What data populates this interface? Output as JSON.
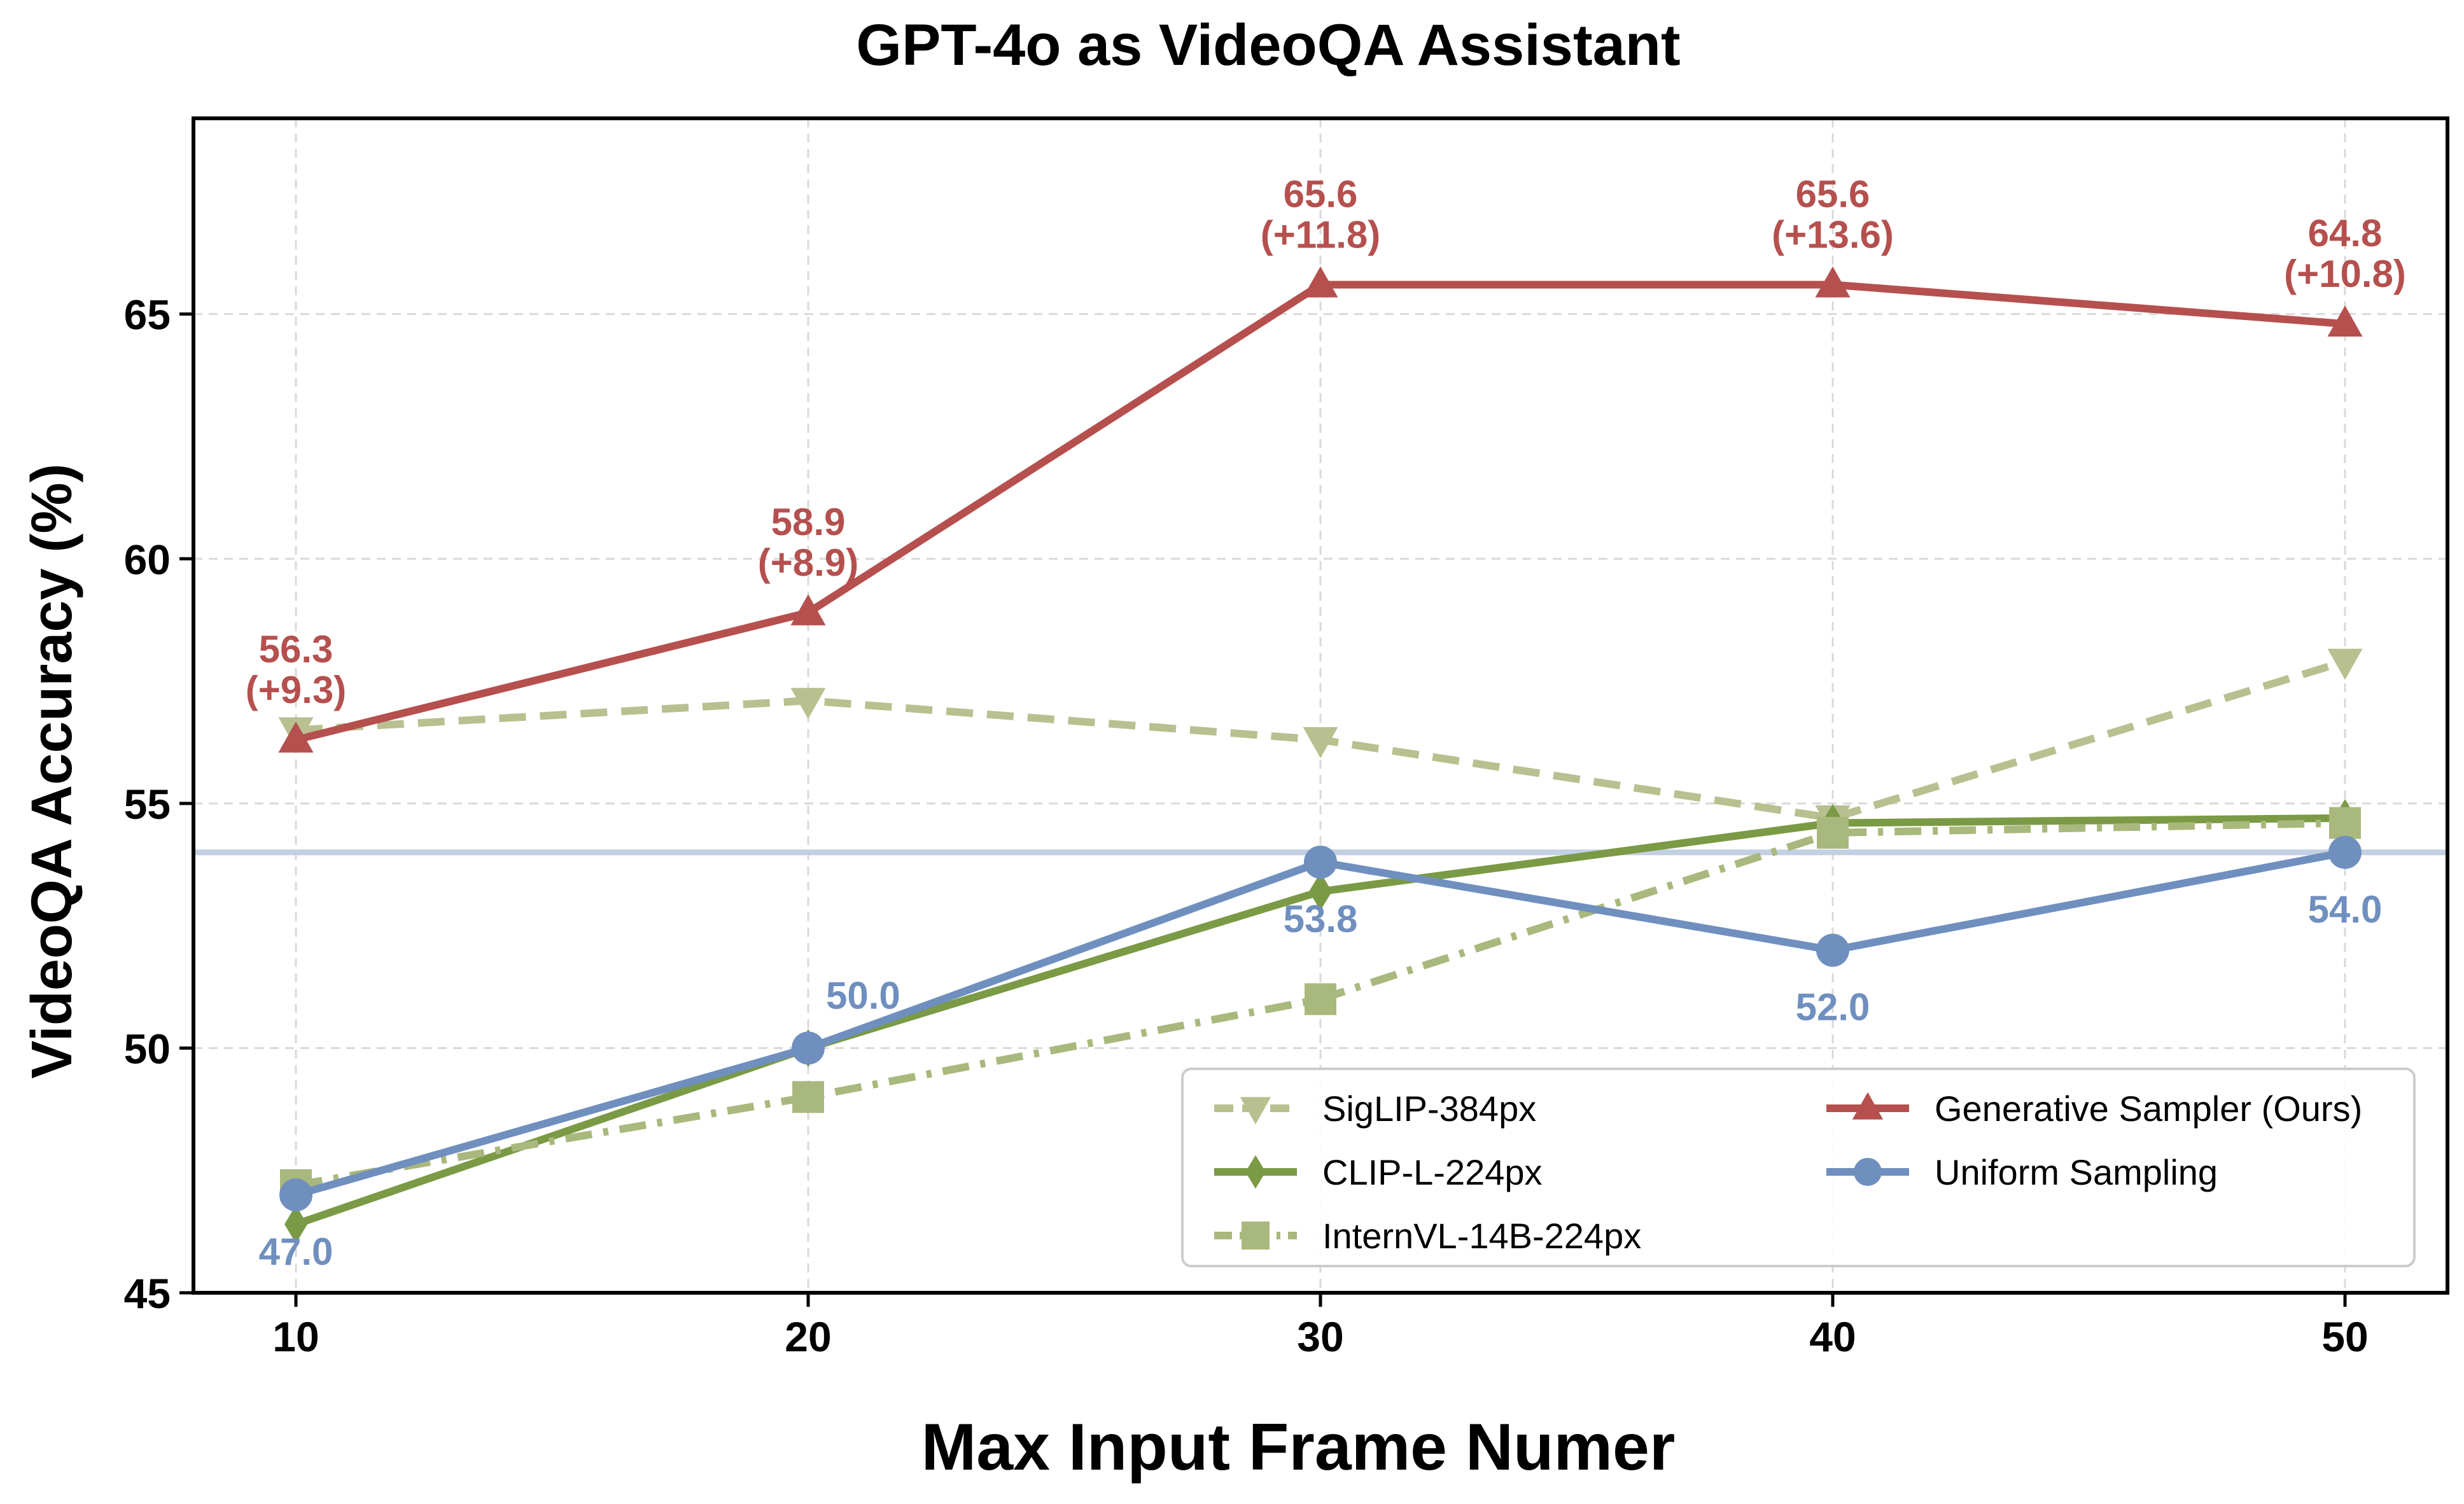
{
  "chart_data": {
    "type": "line",
    "title": "GPT-4o as VideoQA Assistant",
    "xlabel": "Max Input Frame Numer",
    "ylabel": "VideoQA Accuracy (%)",
    "x": [
      10,
      20,
      30,
      40,
      50
    ],
    "xlim": [
      8,
      52
    ],
    "ylim": [
      45,
      69
    ],
    "xticks": [
      "10",
      "20",
      "30",
      "40",
      "50"
    ],
    "yticks": [
      "45",
      "50",
      "55",
      "60",
      "65"
    ],
    "grid": true,
    "legend_position": "bottom-right",
    "reference_line": {
      "y": 54.0,
      "color": "#c3d0e3"
    },
    "series": [
      {
        "name": "SigLIP-384px",
        "values": [
          56.5,
          57.1,
          56.3,
          54.7,
          57.9
        ],
        "color": "#b8c090",
        "linestyle": "dashed",
        "marker": "triangle-down"
      },
      {
        "name": "CLIP-L-224px",
        "values": [
          46.4,
          50.0,
          53.2,
          54.6,
          54.7
        ],
        "color": "#7a9a45",
        "linestyle": "solid",
        "marker": "diamond"
      },
      {
        "name": "InternVL-14B-224px",
        "values": [
          47.2,
          49.0,
          51.0,
          54.4,
          54.6
        ],
        "color": "#a9b87c",
        "linestyle": "dashdot",
        "marker": "square"
      },
      {
        "name": "Generative Sampler (Ours)",
        "values": [
          56.3,
          58.9,
          65.6,
          65.6,
          64.8
        ],
        "color": "#b5504e",
        "linestyle": "solid",
        "marker": "triangle-up"
      },
      {
        "name": "Uniform Sampling",
        "values": [
          47.0,
          50.0,
          53.8,
          52.0,
          54.0
        ],
        "color": "#6f8fbf",
        "linestyle": "solid",
        "marker": "circle"
      }
    ],
    "annotations_red": [
      {
        "value": "56.3",
        "delta": "(+9.3)"
      },
      {
        "value": "58.9",
        "delta": "(+8.9)"
      },
      {
        "value": "65.6",
        "delta": "(+11.8)"
      },
      {
        "value": "65.6",
        "delta": "(+13.6)"
      },
      {
        "value": "64.8",
        "delta": "(+10.8)"
      }
    ],
    "annotations_blue": [
      "47.0",
      "50.0",
      "53.8",
      "52.0",
      "54.0"
    ]
  }
}
